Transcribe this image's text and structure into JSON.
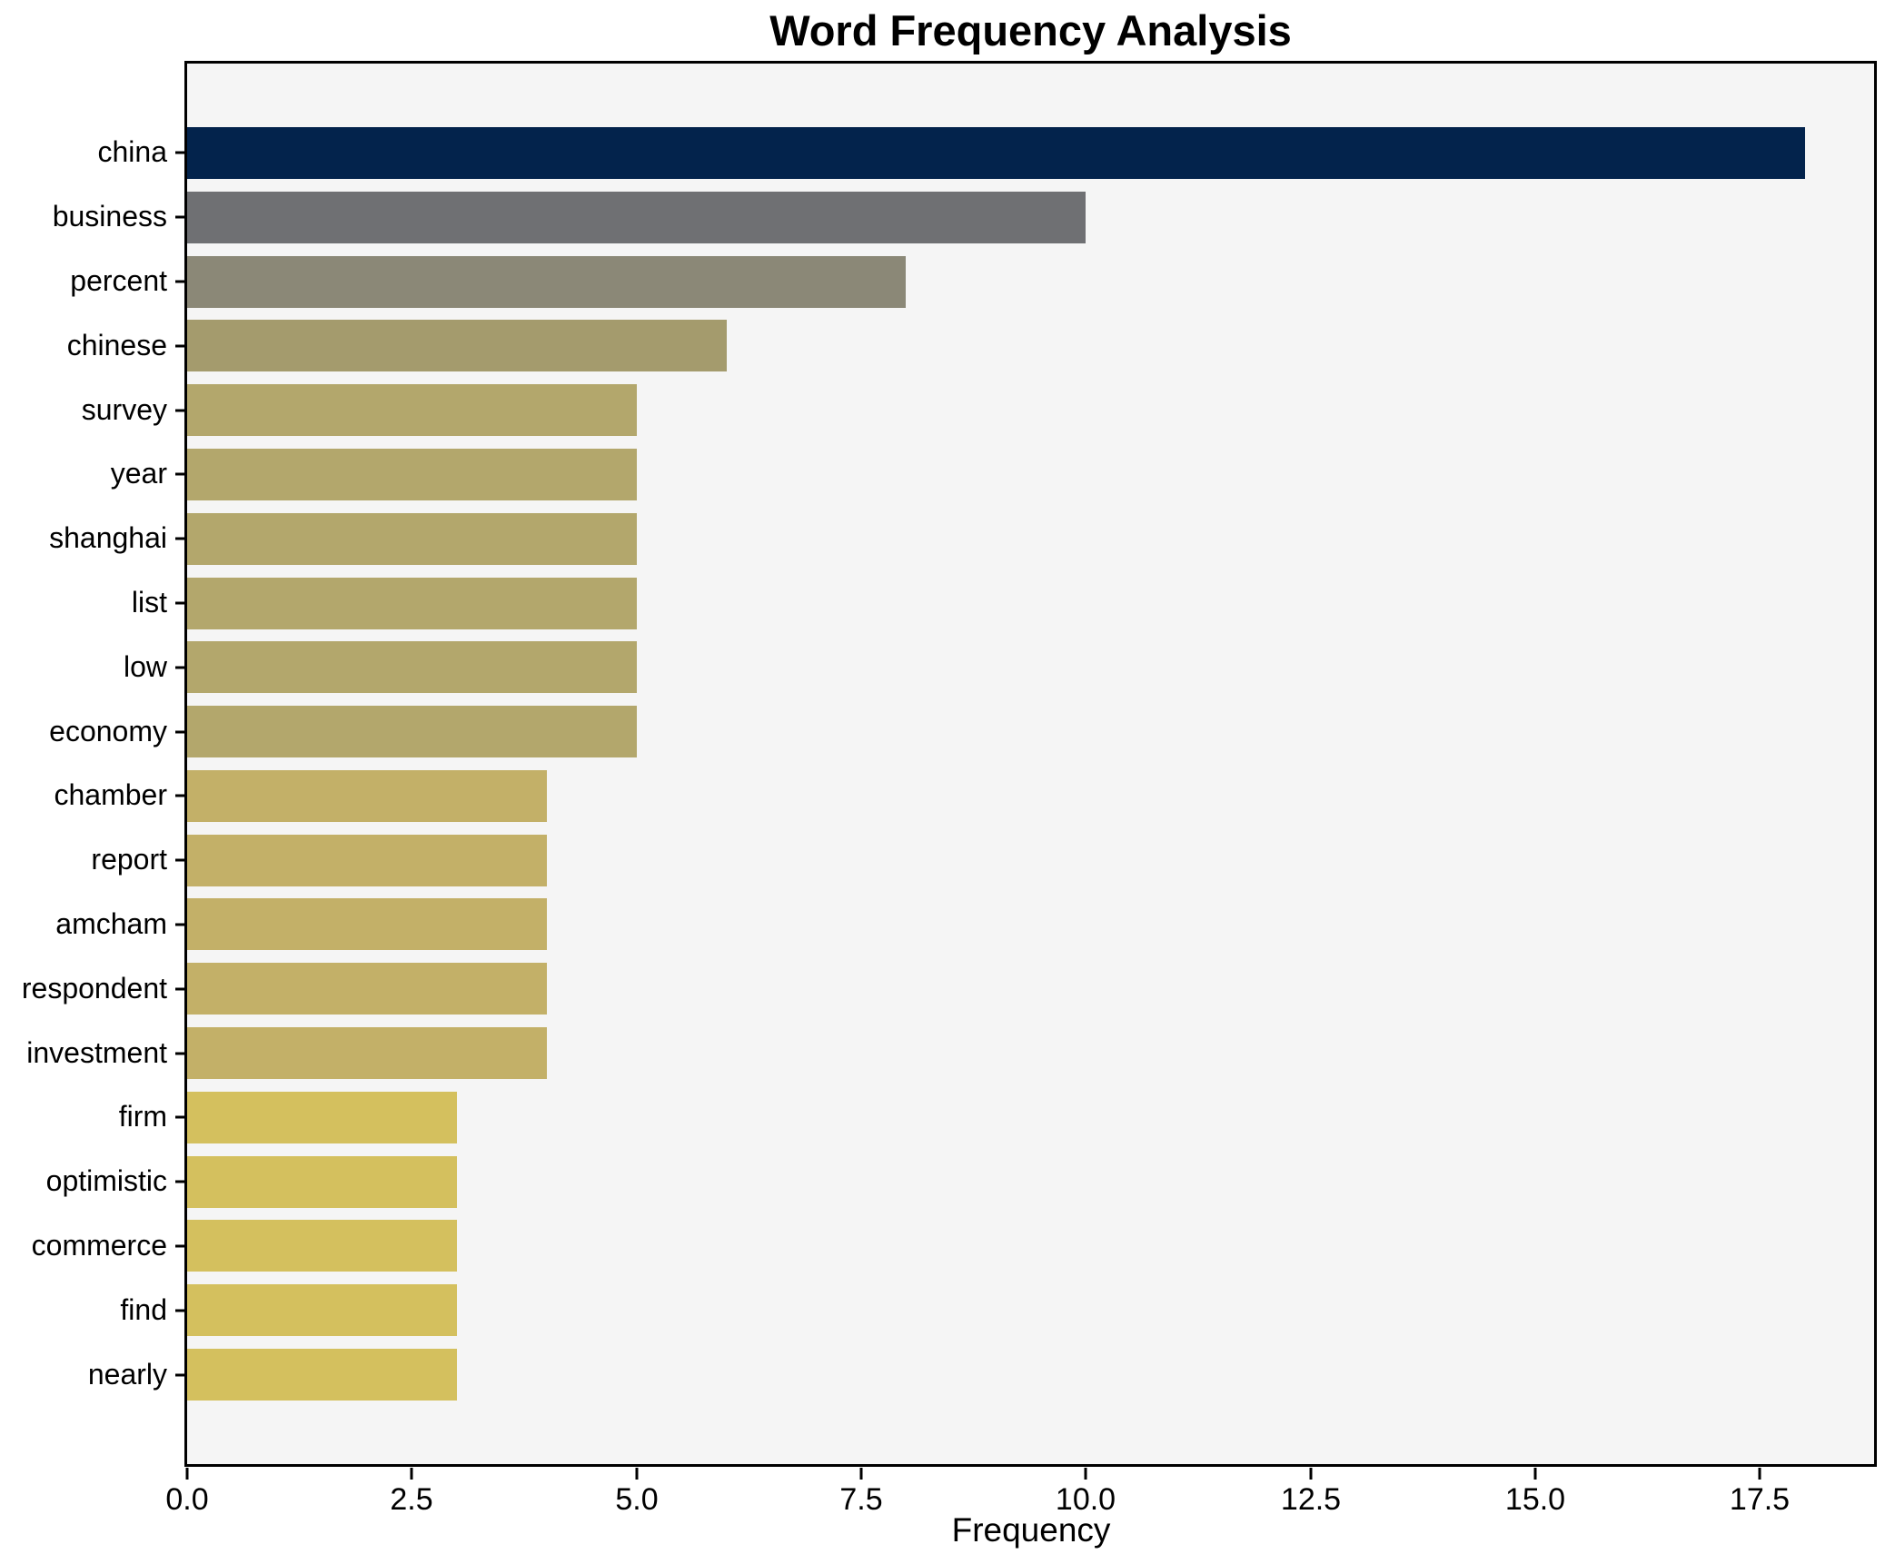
{
  "chart_data": {
    "type": "bar",
    "orientation": "horizontal",
    "title": "Word Frequency Analysis",
    "xlabel": "Frequency",
    "ylabel": "",
    "categories": [
      "china",
      "business",
      "percent",
      "chinese",
      "survey",
      "year",
      "shanghai",
      "list",
      "low",
      "economy",
      "chamber",
      "report",
      "amcham",
      "respondent",
      "investment",
      "firm",
      "optimistic",
      "commerce",
      "find",
      "nearly"
    ],
    "values": [
      18,
      10,
      8,
      6,
      5,
      5,
      5,
      5,
      5,
      5,
      4,
      4,
      4,
      4,
      4,
      3,
      3,
      3,
      3,
      3
    ],
    "bar_colors": [
      "#03234c",
      "#6f7073",
      "#8b8877",
      "#a49b6d",
      "#b3a76c",
      "#b3a76c",
      "#b3a76c",
      "#b3a76c",
      "#b3a76c",
      "#b3a76c",
      "#c3b068",
      "#c3b068",
      "#c3b068",
      "#c3b068",
      "#c3b068",
      "#d4c05e",
      "#d4c05e",
      "#d4c05e",
      "#d4c05e",
      "#d4c05e"
    ],
    "xlim": [
      0,
      18.77
    ],
    "x_ticks": [
      {
        "value": 0,
        "label": "0.0"
      },
      {
        "value": 2.5,
        "label": "2.5"
      },
      {
        "value": 5,
        "label": "5.0"
      },
      {
        "value": 7.5,
        "label": "7.5"
      },
      {
        "value": 10,
        "label": "10.0"
      },
      {
        "value": 12.5,
        "label": "12.5"
      },
      {
        "value": 15,
        "label": "15.0"
      },
      {
        "value": 17.5,
        "label": "17.5"
      }
    ],
    "grid": false,
    "legend": "none",
    "colors": {
      "plot_bg": "#f5f5f5",
      "fig_bg": "#ffffff",
      "spine": "#000000",
      "text": "#000000"
    }
  }
}
